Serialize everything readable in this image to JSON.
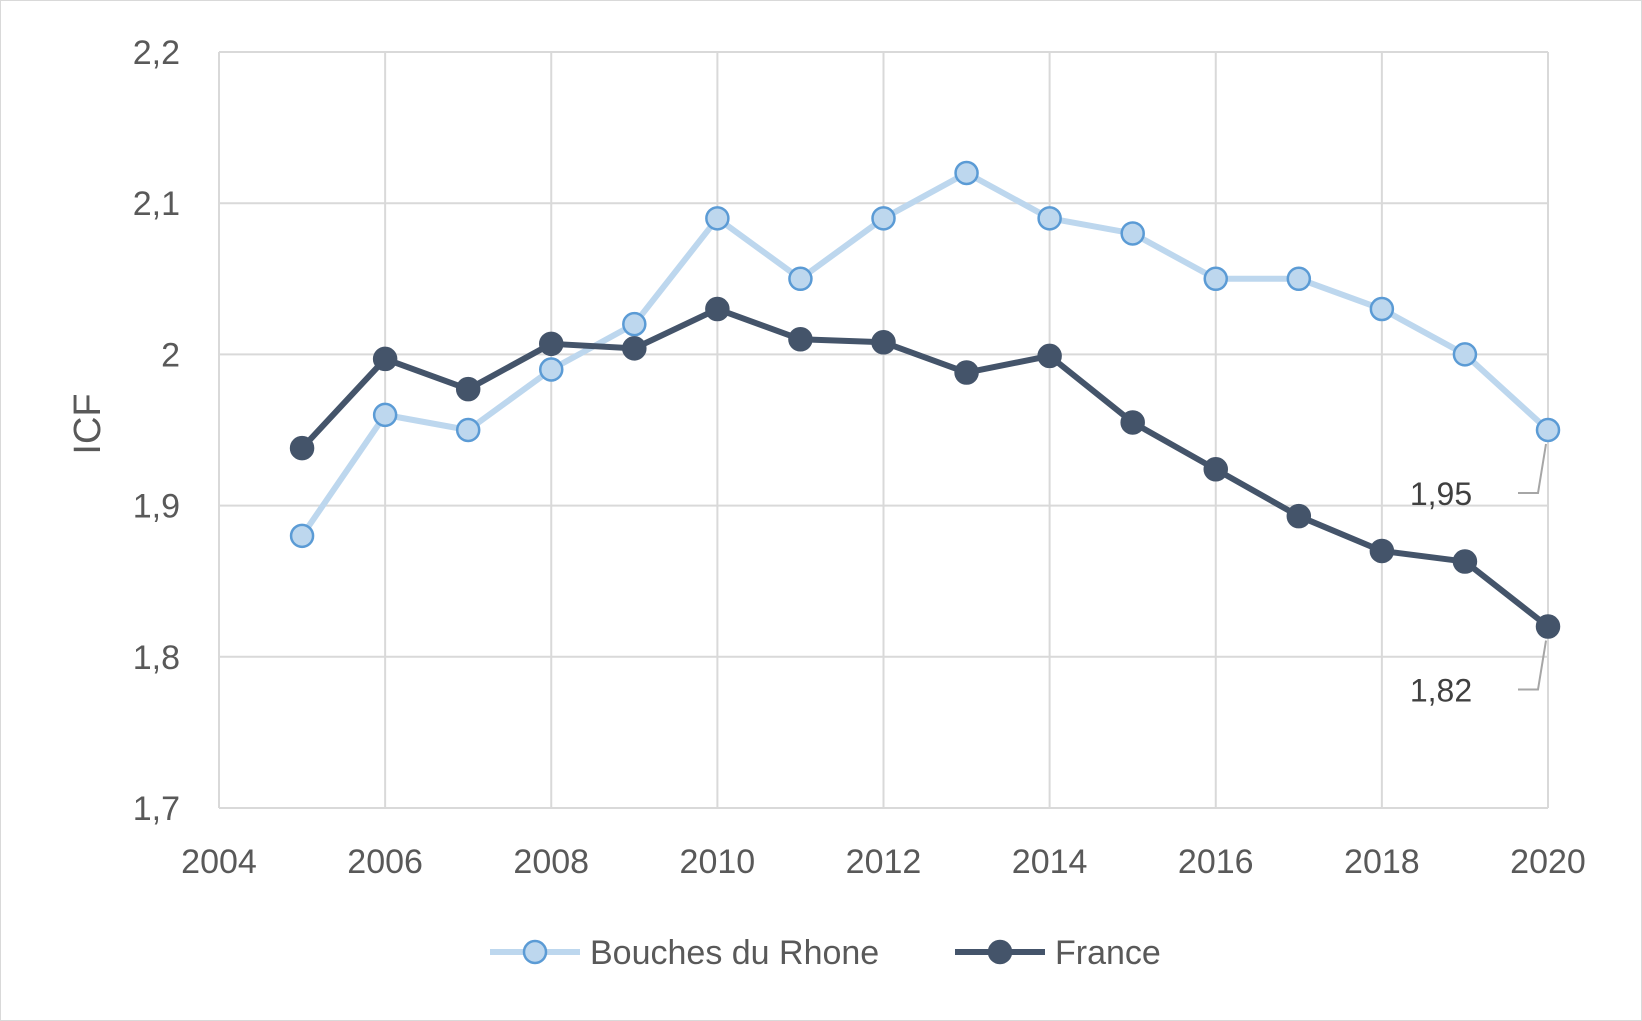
{
  "chart_data": {
    "type": "line",
    "xlabel": "",
    "ylabel": "ICF",
    "xlim": [
      2004,
      2020
    ],
    "ylim": [
      1.7,
      2.2
    ],
    "x_ticks": [
      "2004",
      "2006",
      "2008",
      "2010",
      "2012",
      "2014",
      "2016",
      "2018",
      "2020"
    ],
    "y_ticks": [
      "1,7",
      "1,8",
      "1,9",
      "2",
      "2,1",
      "2,2"
    ],
    "x": [
      2005,
      2006,
      2007,
      2008,
      2009,
      2010,
      2011,
      2012,
      2013,
      2014,
      2015,
      2016,
      2017,
      2018,
      2019,
      2020
    ],
    "series": [
      {
        "name": "Bouches du Rhone",
        "color": "#bdd7ee",
        "marker_edge": "#5b9bd5",
        "values": [
          1.88,
          1.96,
          1.95,
          1.99,
          2.02,
          2.09,
          2.05,
          2.09,
          2.12,
          2.09,
          2.08,
          2.05,
          2.05,
          2.03,
          2.0,
          1.95
        ]
      },
      {
        "name": "France",
        "color": "#44546a",
        "marker_edge": "#44546a",
        "values": [
          1.938,
          1.997,
          1.977,
          2.007,
          2.004,
          2.03,
          2.01,
          2.008,
          1.988,
          1.999,
          1.955,
          1.924,
          1.893,
          1.87,
          1.863,
          1.82
        ]
      }
    ],
    "annotations": [
      {
        "series": "Bouches du Rhone",
        "x": 2020,
        "text": "1,95"
      },
      {
        "series": "France",
        "x": 2020,
        "text": "1,82"
      }
    ],
    "grid": true,
    "legend_position": "bottom"
  }
}
